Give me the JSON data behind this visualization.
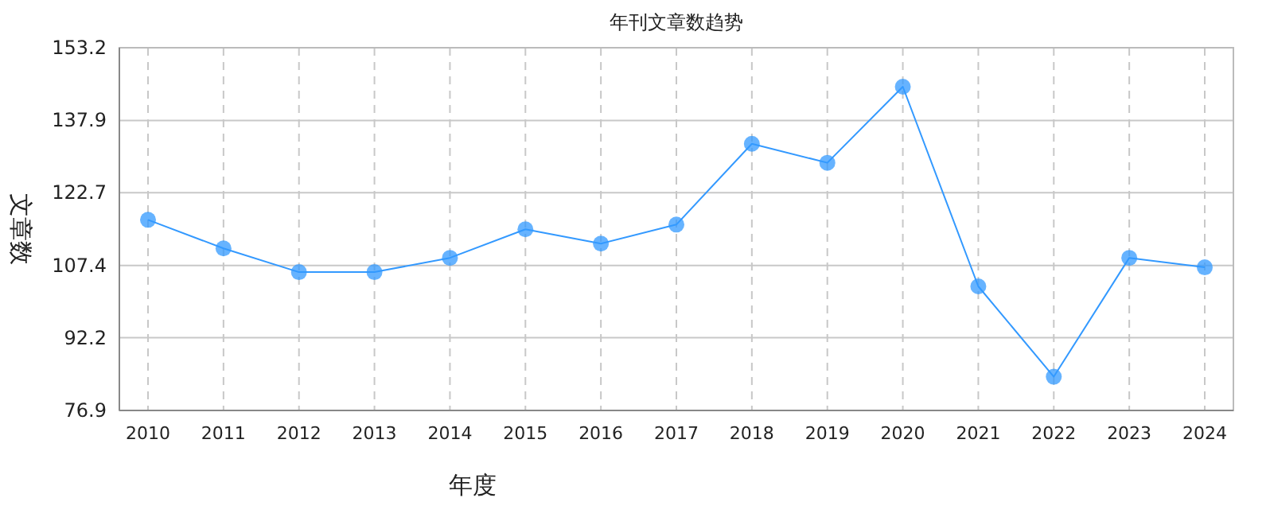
{
  "chart_data": {
    "type": "line",
    "title": "年刊文章数趋势",
    "xlabel": "年度",
    "ylabel": "文章数",
    "categories": [
      "2010",
      "2011",
      "2012",
      "2013",
      "2014",
      "2015",
      "2016",
      "2017",
      "2018",
      "2019",
      "2020",
      "2021",
      "2022",
      "2023",
      "2024"
    ],
    "series": [
      {
        "color": "#3399ff",
        "values": [
          117,
          111,
          106,
          106,
          109,
          115,
          112,
          116,
          133,
          129,
          145,
          103,
          84,
          109,
          107
        ]
      }
    ],
    "ylim": [
      76.9,
      153.2
    ],
    "yticks": [
      76.9,
      92.2,
      107.4,
      122.7,
      137.9,
      153.2
    ],
    "grid": true,
    "marker": "circle",
    "line_style": "solid"
  }
}
